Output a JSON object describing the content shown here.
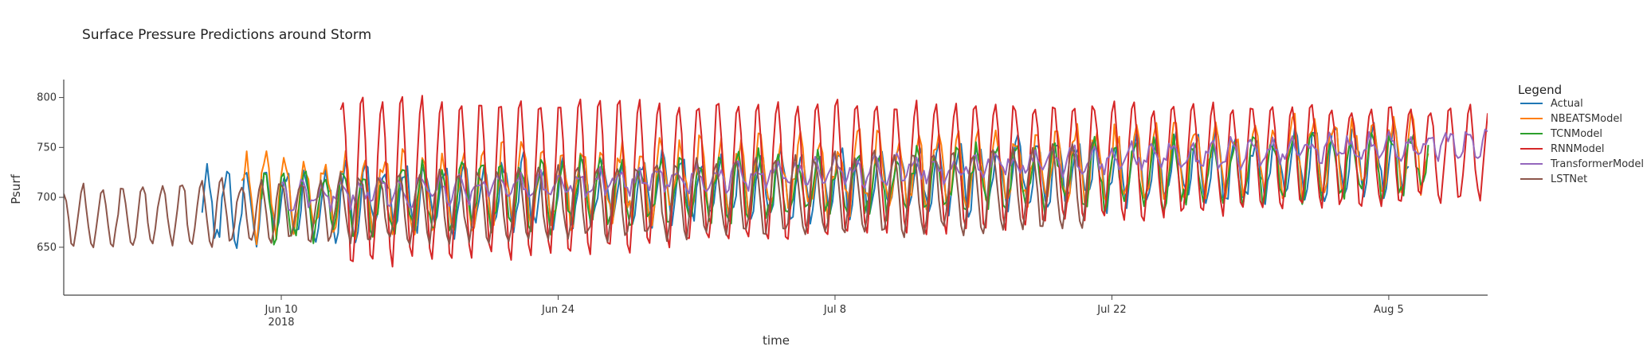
{
  "chart_data": {
    "type": "line",
    "title": "Surface Pressure Predictions around Storm",
    "xlabel": "time",
    "ylabel": "Psurf",
    "x_domain": [
      "2018-05-30",
      "2018-08-10"
    ],
    "ylim": [
      602,
      818
    ],
    "y_ticks": [
      650,
      700,
      750,
      800
    ],
    "x_ticks": [
      {
        "date": "2018-06-10",
        "label": "Jun 10",
        "sublabel": "2018"
      },
      {
        "date": "2018-06-24",
        "label": "Jun 24",
        "sublabel": ""
      },
      {
        "date": "2018-07-08",
        "label": "Jul 8",
        "sublabel": ""
      },
      {
        "date": "2018-07-22",
        "label": "Jul 22",
        "sublabel": ""
      },
      {
        "date": "2018-08-05",
        "label": "Aug 5",
        "sublabel": ""
      }
    ],
    "grid": false,
    "legend_title": "Legend",
    "legend_position": "right",
    "series": [
      {
        "name": "Actual",
        "color": "#1f77b4",
        "start": "2018-06-06",
        "end": "2018-08-06",
        "mean_start": 690,
        "mean_end": 738,
        "amp_start": 32,
        "amp_end": 30,
        "noise": 12
      },
      {
        "name": "NBEATSModel",
        "color": "#ff7f0e",
        "start": "2018-06-08",
        "end": "2018-08-07",
        "mean_start": 700,
        "mean_end": 745,
        "amp_start": 36,
        "amp_end": 32,
        "noise": 14
      },
      {
        "name": "TCNModel",
        "color": "#2ca02c",
        "start": "2018-06-09",
        "end": "2018-08-07",
        "mean_start": 690,
        "mean_end": 735,
        "amp_start": 30,
        "amp_end": 28,
        "noise": 12
      },
      {
        "name": "RNNModel",
        "color": "#d62728",
        "start": "2018-06-13",
        "end": "2018-08-10",
        "mean_start": 715,
        "mean_end": 745,
        "amp_start": 85,
        "amp_end": 45,
        "noise": 6
      },
      {
        "name": "TransformerModel",
        "color": "#9467bd",
        "start": "2018-06-10",
        "end": "2018-08-10",
        "mean_start": 700,
        "mean_end": 755,
        "amp_start": 10,
        "amp_end": 10,
        "noise": 8
      },
      {
        "name": "LSTNet",
        "color": "#8c564b",
        "start": "2018-05-30",
        "end": "2018-07-21",
        "mean_start": 680,
        "mean_end": 710,
        "amp_start": 28,
        "amp_end": 42,
        "noise": 6
      }
    ]
  }
}
